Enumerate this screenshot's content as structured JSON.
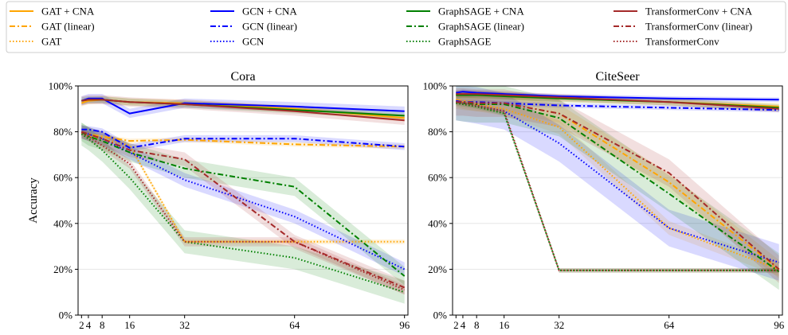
{
  "colors": {
    "GAT": "#FFA500",
    "GCN": "#0000FF",
    "GraphSAGE": "#008000",
    "TransformerConv": "#A52A2A",
    "grid": "#e6e6e6"
  },
  "legend": [
    {
      "label": "GAT + CNA",
      "model": "GAT",
      "style": "solid"
    },
    {
      "label": "GAT (linear)",
      "model": "GAT",
      "style": "dashdot"
    },
    {
      "label": "GAT",
      "model": "GAT",
      "style": "dotted"
    },
    {
      "label": "GCN + CNA",
      "model": "GCN",
      "style": "solid"
    },
    {
      "label": "GCN (linear)",
      "model": "GCN",
      "style": "dashdot"
    },
    {
      "label": "GCN",
      "model": "GCN",
      "style": "dotted"
    },
    {
      "label": "GraphSAGE + CNA",
      "model": "GraphSAGE",
      "style": "solid"
    },
    {
      "label": "GraphSAGE (linear)",
      "model": "GraphSAGE",
      "style": "dashdot"
    },
    {
      "label": "GraphSAGE",
      "model": "GraphSAGE",
      "style": "dotted"
    },
    {
      "label": "TransformerConv + CNA",
      "model": "TransformerConv",
      "style": "solid"
    },
    {
      "label": "TransformerConv (linear)",
      "model": "TransformerConv",
      "style": "dashdot"
    },
    {
      "label": "TransformerConv",
      "model": "TransformerConv",
      "style": "dotted"
    }
  ],
  "chart_data": [
    {
      "type": "line",
      "title": "Cora",
      "xlabel": "",
      "ylabel": "Accuracy",
      "x": [
        2,
        4,
        8,
        16,
        32,
        64,
        96
      ],
      "xticks": [
        "2",
        "4",
        "8",
        "16",
        "32",
        "64",
        "96"
      ],
      "xlim": [
        1,
        97
      ],
      "ylim": [
        0,
        100
      ],
      "yticks": [
        "0%",
        "20%",
        "40%",
        "60%",
        "80%",
        "100%"
      ],
      "grid": "horizontal",
      "series": [
        {
          "name": "GAT + CNA",
          "model": "GAT",
          "style": "solid",
          "values": [
            92.5,
            93.5,
            94,
            93,
            92.5,
            90,
            86
          ],
          "band": 1.5
        },
        {
          "name": "GAT (linear)",
          "model": "GAT",
          "style": "dashdot",
          "values": [
            80,
            79,
            78,
            76,
            76.5,
            74.5,
            73.5
          ],
          "band": 1
        },
        {
          "name": "GAT",
          "model": "GAT",
          "style": "dotted",
          "values": [
            79.5,
            78,
            77,
            74,
            32,
            32,
            32
          ],
          "band": 1
        },
        {
          "name": "GCN + CNA",
          "model": "GCN",
          "style": "solid",
          "values": [
            93.5,
            94.5,
            94.5,
            88,
            92.5,
            91,
            89
          ],
          "band": 2
        },
        {
          "name": "GCN (linear)",
          "model": "GCN",
          "style": "dashdot",
          "values": [
            81,
            81,
            80,
            73,
            77,
            77,
            73.5
          ],
          "band": 1.5
        },
        {
          "name": "GCN",
          "model": "GCN",
          "style": "dotted",
          "values": [
            80,
            79,
            77,
            71,
            59,
            43,
            20
          ],
          "band": 3
        },
        {
          "name": "GraphSAGE + CNA",
          "model": "GraphSAGE",
          "style": "solid",
          "values": [
            93.5,
            94,
            94,
            93,
            92,
            89.5,
            87
          ],
          "band": 1.5
        },
        {
          "name": "GraphSAGE (linear)",
          "model": "GraphSAGE",
          "style": "dashdot",
          "values": [
            80,
            78,
            76,
            71,
            64,
            56,
            17
          ],
          "band": 4
        },
        {
          "name": "GraphSAGE",
          "model": "GraphSAGE",
          "style": "dotted",
          "values": [
            79,
            77,
            72,
            60,
            32,
            25,
            10
          ],
          "band": 5
        },
        {
          "name": "TransformerConv + CNA",
          "model": "TransformerConv",
          "style": "solid",
          "values": [
            93.5,
            94,
            94,
            93,
            92,
            89,
            85
          ],
          "band": 2
        },
        {
          "name": "TransformerConv (linear)",
          "model": "TransformerConv",
          "style": "dashdot",
          "values": [
            80,
            79,
            77,
            72,
            68,
            32,
            12
          ],
          "band": 3
        },
        {
          "name": "TransformerConv",
          "model": "TransformerConv",
          "style": "dotted",
          "values": [
            79.5,
            78,
            74,
            66,
            32,
            32,
            11
          ],
          "band": 2
        }
      ]
    },
    {
      "type": "line",
      "title": "CiteSeer",
      "xlabel": "",
      "ylabel": "",
      "x": [
        2,
        4,
        8,
        16,
        32,
        64,
        96
      ],
      "xticks": [
        "2",
        "4",
        "8",
        "16",
        "32",
        "64",
        "96"
      ],
      "xlim": [
        1,
        97
      ],
      "ylim": [
        0,
        100
      ],
      "yticks": [
        "0%",
        "20%",
        "40%",
        "60%",
        "80%",
        "100%"
      ],
      "grid": "horizontal",
      "series": [
        {
          "name": "GAT + CNA",
          "model": "GAT",
          "style": "solid",
          "values": [
            96,
            96.5,
            96,
            95.5,
            94.5,
            93,
            91
          ],
          "band": 1.5
        },
        {
          "name": "GAT (linear)",
          "model": "GAT",
          "style": "dashdot",
          "values": [
            94,
            93.5,
            93,
            92.5,
            88,
            58,
            20
          ],
          "band": 4
        },
        {
          "name": "GAT",
          "model": "GAT",
          "style": "dotted",
          "values": [
            94,
            93,
            92,
            90,
            82,
            38,
            20
          ],
          "band": 3
        },
        {
          "name": "GCN + CNA",
          "model": "GCN",
          "style": "solid",
          "values": [
            97,
            97.5,
            97,
            96.5,
            95.5,
            94.5,
            94
          ],
          "band": 1
        },
        {
          "name": "GCN (linear)",
          "model": "GCN",
          "style": "dashdot",
          "values": [
            93.5,
            93,
            93,
            92.5,
            91.5,
            90.5,
            89.5
          ],
          "band": 1
        },
        {
          "name": "GCN",
          "model": "GCN",
          "style": "dotted",
          "values": [
            93,
            92.5,
            91.5,
            89,
            75,
            38,
            23
          ],
          "band": 8
        },
        {
          "name": "GraphSAGE + CNA",
          "model": "GraphSAGE",
          "style": "solid",
          "values": [
            96,
            96,
            96,
            95.5,
            94.5,
            93,
            90.5
          ],
          "band": 1.5
        },
        {
          "name": "GraphSAGE (linear)",
          "model": "GraphSAGE",
          "style": "dashdot",
          "values": [
            93,
            92.5,
            92,
            92,
            86,
            53,
            19
          ],
          "band": 8
        },
        {
          "name": "GraphSAGE",
          "model": "GraphSAGE",
          "style": "dotted",
          "values": [
            92.5,
            92,
            91,
            88,
            19.5,
            19.5,
            19.5
          ],
          "band": 1
        },
        {
          "name": "TransformerConv + CNA",
          "model": "TransformerConv",
          "style": "solid",
          "values": [
            96.5,
            96.5,
            96.5,
            96,
            95,
            93,
            90
          ],
          "band": 1.5
        },
        {
          "name": "TransformerConv (linear)",
          "model": "TransformerConv",
          "style": "dashdot",
          "values": [
            93,
            93,
            92.5,
            92.5,
            88,
            62,
            20
          ],
          "band": 6
        },
        {
          "name": "TransformerConv",
          "model": "TransformerConv",
          "style": "dotted",
          "values": [
            93,
            92.5,
            91.5,
            89,
            19.5,
            19.5,
            19.5
          ],
          "band": 1
        }
      ]
    }
  ]
}
